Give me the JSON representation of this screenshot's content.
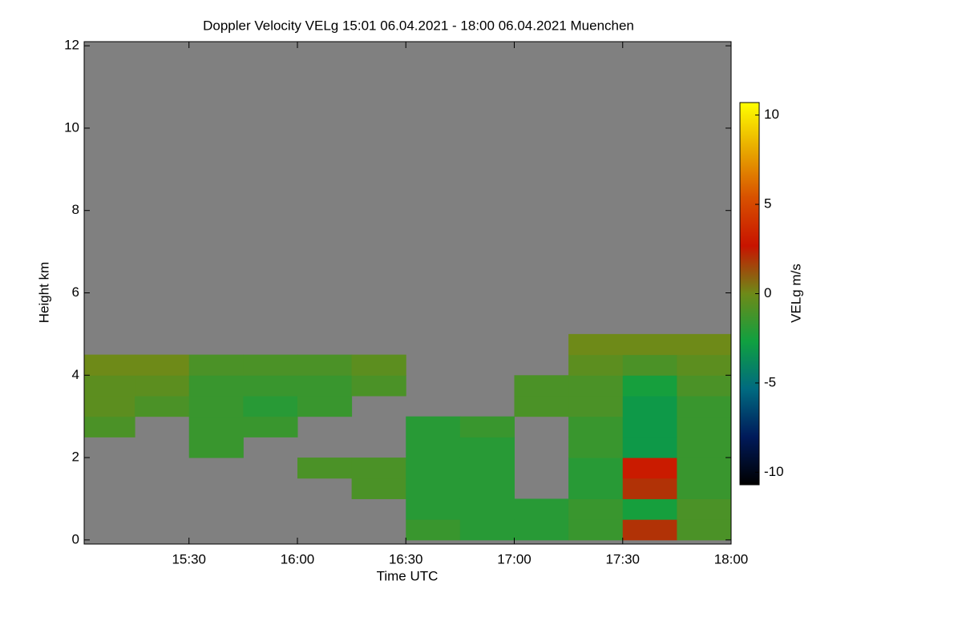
{
  "chart_data": {
    "type": "heatmap",
    "title": "Doppler Velocity VELg   15:01 06.04.2021 - 18:00 06.04.2021 Muenchen",
    "x_label": "Time UTC",
    "y_label": "Height km",
    "colorbar_label": "VELg m/s",
    "xlim": [
      15.0167,
      18.0
    ],
    "xticks": [
      {
        "value": 15.5,
        "label": "15:30"
      },
      {
        "value": 16.0,
        "label": "16:00"
      },
      {
        "value": 16.5,
        "label": "16:30"
      },
      {
        "value": 17.0,
        "label": "17:00"
      },
      {
        "value": 17.5,
        "label": "17:30"
      },
      {
        "value": 18.0,
        "label": "18:00"
      }
    ],
    "ylim": [
      -0.1,
      12.1
    ],
    "yticks": [
      0,
      2,
      4,
      6,
      8,
      10,
      12
    ],
    "zlim": [
      -10.7,
      10.7
    ],
    "zticks": [
      -10,
      -5,
      0,
      5,
      10
    ],
    "colormap": [
      "#000000",
      "#001a5a",
      "#006a80",
      "#10a040",
      "#6e8a18",
      "#c81400",
      "#d85000",
      "#e8a800",
      "#ffff00"
    ],
    "background": "#808080",
    "x_edges": [
      15.0167,
      15.25,
      15.5,
      15.75,
      16.0,
      16.25,
      16.5,
      16.75,
      17.0,
      17.25,
      17.5,
      17.75,
      18.0
    ],
    "y_edges": [
      0,
      0.5,
      1,
      1.5,
      2,
      2.5,
      3,
      3.5,
      4,
      4.5,
      5
    ],
    "z": [
      [
        null,
        null,
        null,
        null,
        null,
        null,
        -1.5,
        -2,
        -2,
        -1.5,
        2,
        -1
      ],
      [
        null,
        null,
        null,
        null,
        null,
        null,
        -2,
        -2,
        -2,
        -1.5,
        -2.5,
        -1
      ],
      [
        null,
        null,
        null,
        null,
        null,
        -1,
        -2,
        -2,
        null,
        -2,
        2,
        -1.5
      ],
      [
        null,
        null,
        null,
        null,
        -1,
        -1,
        -2,
        -2,
        null,
        -2,
        3,
        -1.5
      ],
      [
        null,
        null,
        -1.5,
        null,
        null,
        null,
        -2,
        -2,
        null,
        -1.5,
        -3,
        -1.5
      ],
      [
        -1,
        null,
        -1.5,
        -1.5,
        null,
        null,
        -2,
        -1.5,
        null,
        -1.5,
        -3,
        -1.5
      ],
      [
        -0.5,
        -1,
        -1.5,
        -2,
        -1.5,
        null,
        null,
        null,
        -1,
        -1,
        -3,
        -1.5
      ],
      [
        -0.5,
        -0.5,
        -1.5,
        -1.5,
        -1.5,
        -1,
        null,
        null,
        -1,
        -1,
        -2.5,
        -1
      ],
      [
        0,
        0,
        -1,
        -1,
        -1,
        -0.5,
        null,
        null,
        null,
        -0.5,
        -1,
        -0.5
      ],
      [
        null,
        null,
        null,
        null,
        null,
        null,
        null,
        null,
        null,
        0,
        0,
        0
      ]
    ]
  }
}
